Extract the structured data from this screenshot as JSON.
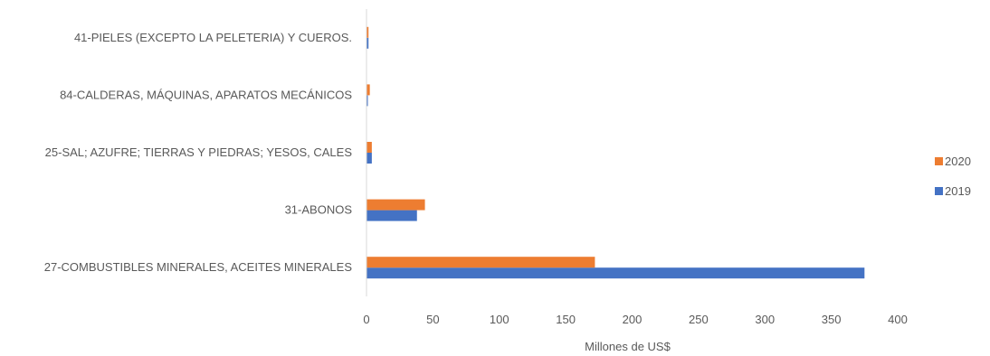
{
  "chart_data": {
    "type": "bar",
    "orientation": "horizontal",
    "categories": [
      "27-COMBUSTIBLES MINERALES, ACEITES MINERALES",
      "31-ABONOS",
      "25-SAL; AZUFRE; TIERRAS Y PIEDRAS; YESOS, CALES",
      "84-CALDERAS, MÁQUINAS, APARATOS MECÁNICOS",
      "41-PIELES (EXCEPTO LA PELETERIA) Y CUEROS."
    ],
    "series": [
      {
        "name": "2019",
        "color": "#4472C4",
        "values": [
          375,
          38,
          4,
          1,
          1.5
        ]
      },
      {
        "name": "2020",
        "color": "#ED7D31",
        "values": [
          172,
          44,
          4,
          2.5,
          1.5
        ]
      }
    ],
    "xlabel": "Millones de US$",
    "ylabel": "",
    "xlim": [
      0,
      400
    ],
    "xticks": [
      "0",
      "50",
      "100",
      "150",
      "200",
      "250",
      "300",
      "350",
      "400"
    ],
    "grid": false,
    "legend_position": "right"
  }
}
